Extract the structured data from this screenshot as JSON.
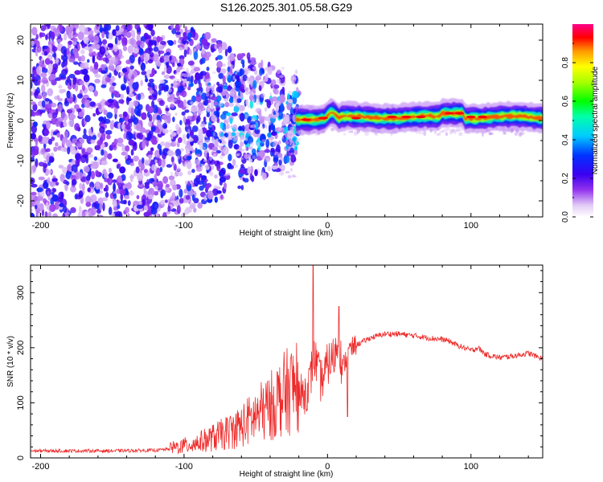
{
  "title": "S126.2025.301.05.58.G29",
  "colors": {
    "snr_line": "#ee2b2b",
    "frame": "#000000"
  },
  "chart_data": [
    {
      "type": "heatmap",
      "title": "S126.2025.301.05.58.G29",
      "xlabel": "Height of straight line (km)",
      "ylabel": "Frequency (Hz)",
      "xlim": [
        -207,
        150
      ],
      "ylim": [
        -24,
        24
      ],
      "xticks": [
        -200,
        -100,
        0,
        100
      ],
      "xtick_labels": [
        "-200",
        "-100",
        "0",
        "100"
      ],
      "yticks": [
        -20,
        -10,
        0,
        10,
        20
      ],
      "ytick_labels": [
        "-20",
        "-10",
        "0",
        "10",
        "20"
      ],
      "colorbar": {
        "label": "Normalized spectral amplitude",
        "range": [
          0,
          1
        ],
        "ticks": [
          0.0,
          0.2,
          0.4,
          0.6,
          0.8
        ],
        "tick_labels": [
          "0.0",
          "0.2",
          "0.4",
          "0.6",
          "0.8"
        ]
      },
      "ridge": {
        "description": "high-amplitude carrier band near 0 Hz for heights above about -20 km",
        "frequency_hz": 1,
        "start_km": -22,
        "end_km": 150,
        "peak_amplitude": 0.9
      },
      "noise_field": {
        "from_km": -207,
        "to_km": -20,
        "amplitude": [
          0.1,
          0.3
        ]
      }
    },
    {
      "type": "line",
      "xlabel": "Height of straight line (km)",
      "ylabel": "SNR (10 * v/v)",
      "xlim": [
        -207,
        150
      ],
      "ylim": [
        0,
        350
      ],
      "xticks": [
        -200,
        -100,
        0,
        100
      ],
      "xtick_labels": [
        "-200",
        "-100",
        "0",
        "100"
      ],
      "yticks": [
        0,
        100,
        200,
        300
      ],
      "ytick_labels": [
        "0",
        "100",
        "200",
        "300"
      ],
      "series": [
        {
          "name": "SNR",
          "x": [
            -207,
            -180,
            -150,
            -120,
            -100,
            -90,
            -80,
            -70,
            -60,
            -50,
            -40,
            -30,
            -20,
            -15,
            -12,
            -10,
            -8,
            -5,
            -2,
            0,
            5,
            8,
            10,
            15,
            20,
            30,
            40,
            50,
            60,
            70,
            80,
            85,
            90,
            95,
            100,
            105,
            110,
            120,
            130,
            140,
            150
          ],
          "y": [
            12,
            12,
            12,
            13,
            18,
            22,
            28,
            35,
            45,
            60,
            75,
            95,
            110,
            120,
            140,
            180,
            175,
            140,
            150,
            170,
            185,
            220,
            160,
            195,
            205,
            218,
            225,
            225,
            222,
            218,
            215,
            212,
            205,
            200,
            195,
            200,
            188,
            182,
            185,
            190,
            180
          ]
        }
      ],
      "spikes": [
        {
          "x": -10,
          "y": 350
        },
        {
          "x": 8,
          "y": 275
        },
        {
          "x": 14,
          "y": 75
        }
      ]
    }
  ]
}
